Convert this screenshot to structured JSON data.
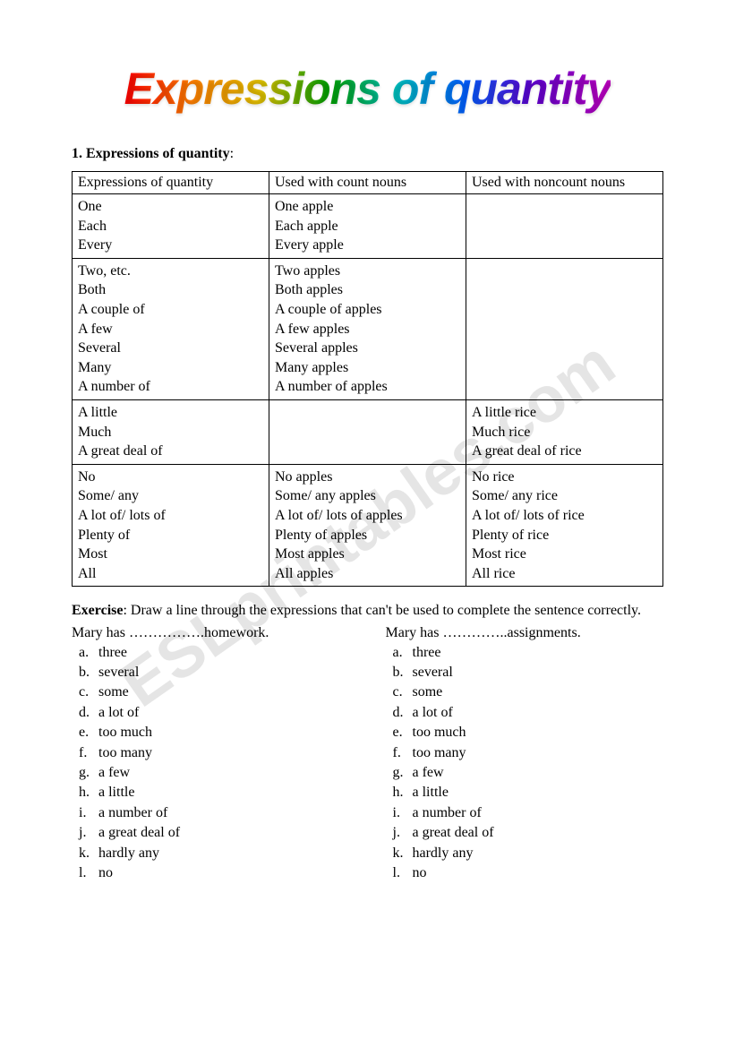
{
  "watermark": "ESLprintables.com",
  "title": "Expressions of quantity",
  "section_number": "1.",
  "section_title": "Expressions of quantity",
  "section_colon": ":",
  "table": {
    "header": {
      "c1": "Expressions of quantity",
      "c2": "Used with count nouns",
      "c3": "Used with noncount nouns"
    },
    "rows": [
      {
        "c1": [
          "One",
          "Each",
          "Every"
        ],
        "c2": [
          "One apple",
          "Each apple",
          "Every apple"
        ],
        "c3": []
      },
      {
        "c1": [
          "Two, etc.",
          "Both",
          "A couple of",
          "A few",
          "Several",
          "Many",
          "A number of"
        ],
        "c2": [
          "Two apples",
          "Both apples",
          "A couple of apples",
          "A few apples",
          "Several apples",
          "Many apples",
          "A number of apples"
        ],
        "c3": []
      },
      {
        "c1": [
          "A little",
          "Much",
          "A great deal of"
        ],
        "c2": [],
        "c3": [
          "A little rice",
          "Much rice",
          "A great deal of rice"
        ]
      },
      {
        "c1": [
          "No",
          "Some/ any",
          "A lot of/ lots of",
          "Plenty of",
          "Most",
          "All"
        ],
        "c2": [
          "No apples",
          "Some/ any apples",
          "A lot of/ lots of apples",
          "Plenty of apples",
          "Most apples",
          "All apples"
        ],
        "c3": [
          "No rice",
          "Some/ any rice",
          "A lot of/ lots of rice",
          "Plenty of rice",
          "Most rice",
          "All rice"
        ]
      }
    ]
  },
  "exercise": {
    "label": "Exercise",
    "text": ": Draw a line through the expressions that can't be used to complete the sentence correctly.",
    "col1": {
      "prompt": "Mary has …………….homework.",
      "options": [
        "three",
        "several",
        "some",
        "a lot of",
        "too much",
        "too many",
        "a few",
        "a little",
        "a number of",
        "a great deal of",
        "hardly any",
        "no"
      ]
    },
    "col2": {
      "prompt": "Mary has …………..assignments.",
      "options": [
        "three",
        "several",
        "some",
        "a lot of",
        "too much",
        "too many",
        "a few",
        "a little",
        "a number of",
        "a great deal of",
        "hardly any",
        "no"
      ]
    },
    "letters": [
      "a",
      "b",
      "c",
      "d",
      "e",
      "f",
      "g",
      "h",
      "i",
      "j",
      "k",
      "l"
    ]
  }
}
